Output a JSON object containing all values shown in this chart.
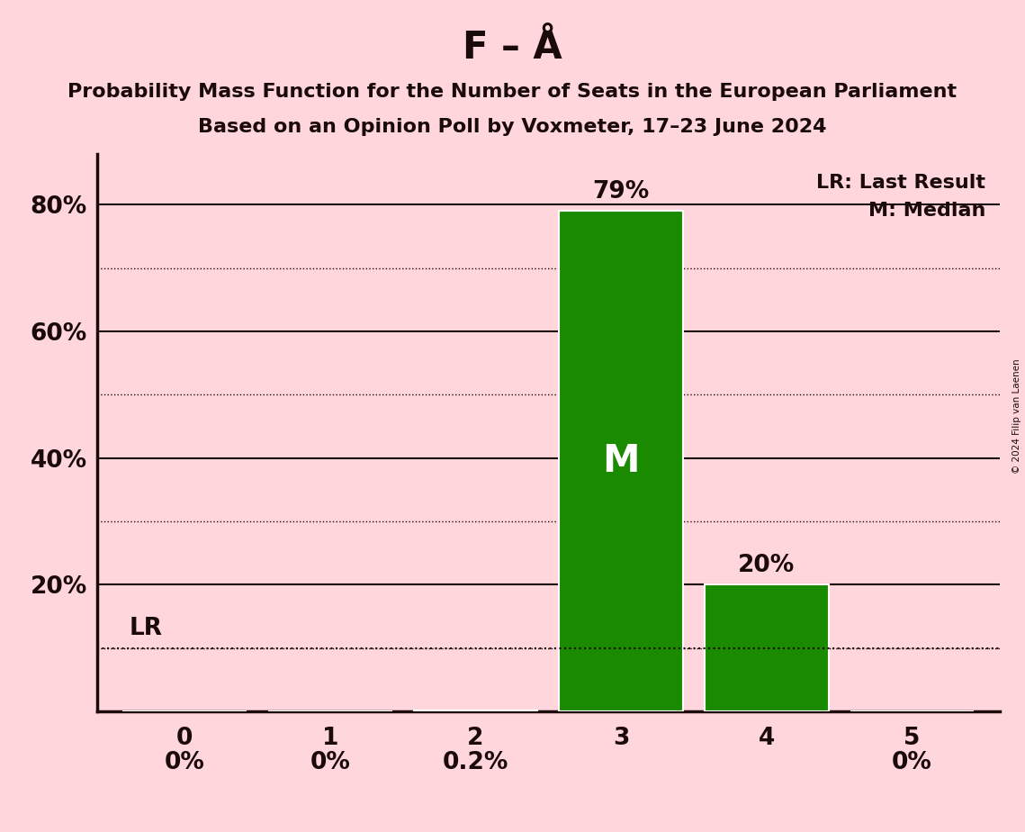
{
  "title": "F – Å",
  "subtitle_line1": "Probability Mass Function for the Number of Seats in the European Parliament",
  "subtitle_line2": "Based on an Opinion Poll by Voxmeter, 17–23 June 2024",
  "copyright": "© 2024 Filip van Laenen",
  "categories": [
    0,
    1,
    2,
    3,
    4,
    5
  ],
  "values": [
    0.0,
    0.0,
    0.002,
    0.79,
    0.2,
    0.0
  ],
  "bar_color": "#1a8a00",
  "bar_edge_color": "#ffffff",
  "background_color": "#ffd6dc",
  "text_color": "#1a0a0a",
  "median_seat": 3,
  "lr_level": 0.1,
  "lr_label": "LR",
  "median_label": "M",
  "legend_lr": "LR: Last Result",
  "legend_m": "M: Median",
  "ylim": [
    0,
    0.88
  ],
  "yticks": [
    0.2,
    0.4,
    0.6,
    0.8
  ],
  "ytick_labels": [
    "20%",
    "40%",
    "60%",
    "80%"
  ],
  "dotted_gridlines": [
    0.1,
    0.3,
    0.5,
    0.7
  ],
  "solid_gridlines": [
    0.2,
    0.4,
    0.6,
    0.8
  ],
  "bar_width": 0.85,
  "title_fontsize": 30,
  "subtitle_fontsize": 16,
  "tick_fontsize": 19,
  "annotation_fontsize": 19,
  "median_fontsize": 30,
  "lr_fontsize": 19,
  "legend_fontsize": 16,
  "bar_labels": [
    "0%",
    "0%",
    "0.2%",
    "79%",
    "20%",
    "0%"
  ],
  "bar_label_inside": [
    false,
    false,
    false,
    true,
    false,
    false
  ],
  "bar_label_above": [
    false,
    false,
    false,
    true,
    true,
    false
  ]
}
